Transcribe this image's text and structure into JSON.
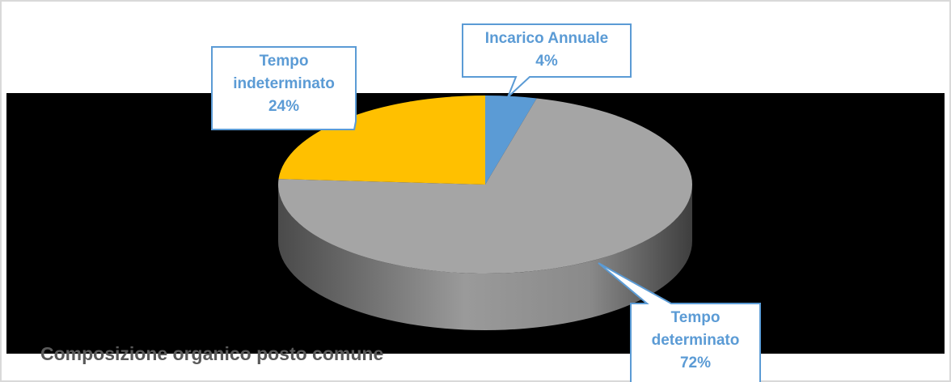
{
  "chart_data": {
    "type": "pie",
    "title": "Composizione organico posto comune",
    "categories": [
      "Incarico Annuale",
      "Tempo determinato",
      "Tempo indeterminato"
    ],
    "values": [
      4,
      72,
      24
    ],
    "value_labels": [
      "4%",
      "72%",
      "24%"
    ],
    "colors": [
      "#5b9bd5",
      "#a5a5a5",
      "#ffc000"
    ]
  }
}
